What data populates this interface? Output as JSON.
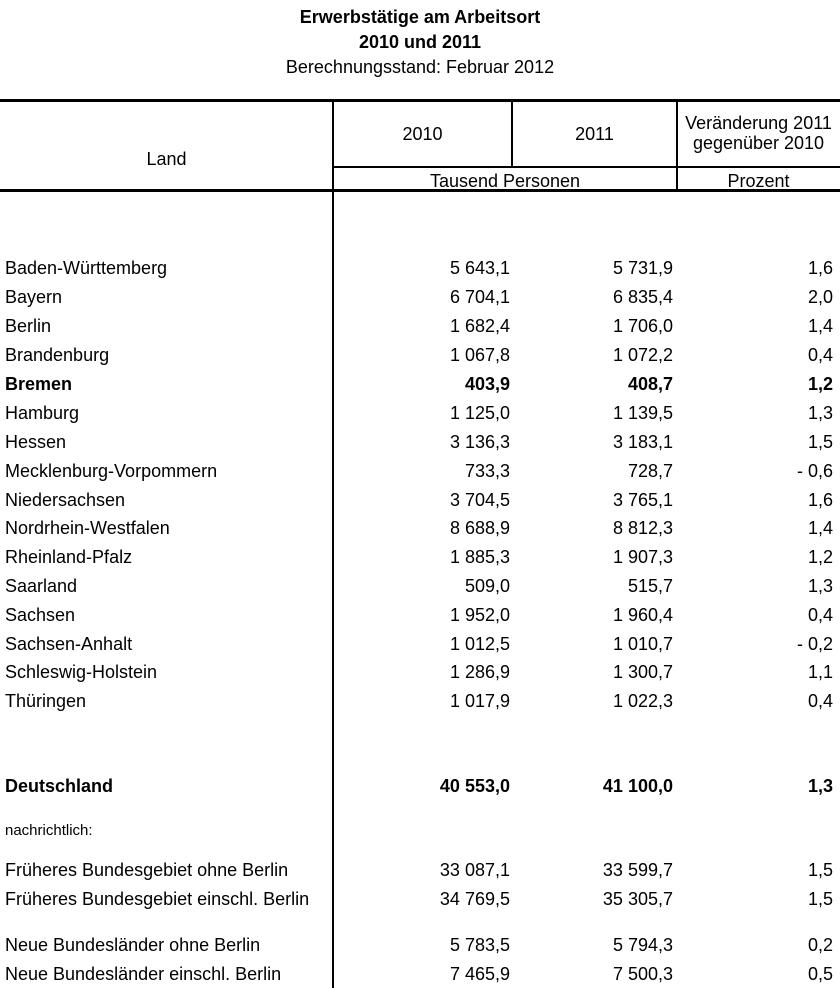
{
  "title": {
    "line1": "Erwerbstätige am Arbeitsort",
    "line2": "2010 und 2011",
    "line3": "Berechnungsstand: Februar 2012"
  },
  "table": {
    "header": {
      "land": "Land",
      "col2010": "2010",
      "col2011": "2011",
      "change": "Veränderung 2011\ngegenüber 2010",
      "unit_persons": "Tausend Personen",
      "unit_percent": "Prozent"
    },
    "rows": [
      {
        "land": "Baden-Württemberg",
        "v2010": "5 643,1",
        "v2011": "5 731,9",
        "pct": "1,6",
        "bold": false,
        "small": false
      },
      {
        "land": "Bayern",
        "v2010": "6 704,1",
        "v2011": "6 835,4",
        "pct": "2,0",
        "bold": false,
        "small": false
      },
      {
        "land": "Berlin",
        "v2010": "1 682,4",
        "v2011": "1 706,0",
        "pct": "1,4",
        "bold": false,
        "small": false
      },
      {
        "land": "Brandenburg",
        "v2010": "1 067,8",
        "v2011": "1 072,2",
        "pct": "0,4",
        "bold": false,
        "small": false
      },
      {
        "land": "Bremen",
        "v2010": "403,9",
        "v2011": "408,7",
        "pct": "1,2",
        "bold": true,
        "small": false
      },
      {
        "land": "Hamburg",
        "v2010": "1 125,0",
        "v2011": "1 139,5",
        "pct": "1,3",
        "bold": false,
        "small": false
      },
      {
        "land": "Hessen",
        "v2010": "3 136,3",
        "v2011": "3 183,1",
        "pct": "1,5",
        "bold": false,
        "small": false
      },
      {
        "land": "Mecklenburg-Vorpommern",
        "v2010": "733,3",
        "v2011": "728,7",
        "pct": "- 0,6",
        "bold": false,
        "small": false
      },
      {
        "land": "Niedersachsen",
        "v2010": "3 704,5",
        "v2011": "3 765,1",
        "pct": "1,6",
        "bold": false,
        "small": false
      },
      {
        "land": "Nordrhein-Westfalen",
        "v2010": "8 688,9",
        "v2011": "8 812,3",
        "pct": "1,4",
        "bold": false,
        "small": false
      },
      {
        "land": "Rheinland-Pfalz",
        "v2010": "1 885,3",
        "v2011": "1 907,3",
        "pct": "1,2",
        "bold": false,
        "small": false
      },
      {
        "land": "Saarland",
        "v2010": "509,0",
        "v2011": "515,7",
        "pct": "1,3",
        "bold": false,
        "small": false
      },
      {
        "land": "Sachsen",
        "v2010": "1 952,0",
        "v2011": "1 960,4",
        "pct": "0,4",
        "bold": false,
        "small": false
      },
      {
        "land": "Sachsen-Anhalt",
        "v2010": "1 012,5",
        "v2011": "1 010,7",
        "pct": "- 0,2",
        "bold": false,
        "small": false
      },
      {
        "land": "Schleswig-Holstein",
        "v2010": "1 286,9",
        "v2011": "1 300,7",
        "pct": "1,1",
        "bold": false,
        "small": false
      },
      {
        "land": "Thüringen",
        "v2010": "1 017,9",
        "v2011": "1 022,3",
        "pct": "0,4",
        "bold": false,
        "small": false
      },
      {
        "land": "Deutschland",
        "v2010": "40 553,0",
        "v2011": "41 100,0",
        "pct": "1,3",
        "bold": true,
        "small": false
      },
      {
        "land": "nachrichtlich:",
        "v2010": "",
        "v2011": "",
        "pct": "",
        "bold": false,
        "small": true
      },
      {
        "land": "Früheres Bundesgebiet ohne Berlin",
        "v2010": "33 087,1",
        "v2011": "33 599,7",
        "pct": "1,5",
        "bold": false,
        "small": false
      },
      {
        "land": "Früheres Bundesgebiet einschl. Berlin",
        "v2010": "34 769,5",
        "v2011": "35 305,7",
        "pct": "1,5",
        "bold": false,
        "small": false
      },
      {
        "land": "Neue Bundesländer ohne Berlin",
        "v2010": "5 783,5",
        "v2011": "5 794,3",
        "pct": "0,2",
        "bold": false,
        "small": false
      },
      {
        "land": "Neue Bundesländer einschl. Berlin",
        "v2010": "7 465,9",
        "v2011": "7 500,3",
        "pct": "0,5",
        "bold": false,
        "small": false
      }
    ]
  },
  "colors": {
    "text": "#000000",
    "background": "#ffffff",
    "line": "#000000"
  }
}
